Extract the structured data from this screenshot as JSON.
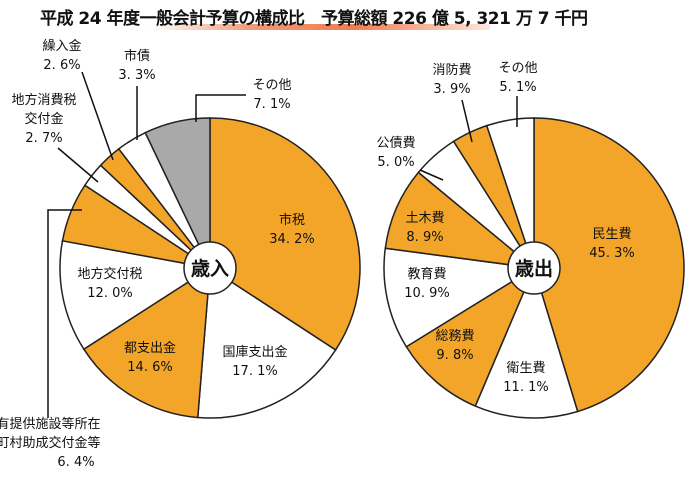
{
  "title": "平成 24 年度一般会計予算の構成比　予算総額 226 億 5, 321 万 7 千円",
  "colors": {
    "orange": "#f3a52a",
    "white": "#ffffff",
    "gray": "#a9a9a9",
    "stroke": "#222222"
  },
  "chart_data": [
    {
      "type": "pie",
      "center_label": "歳入",
      "slices": [
        {
          "label": "市税",
          "value": 34.2,
          "text": "34. 2%",
          "color": "orange"
        },
        {
          "label": "国庫支出金",
          "value": 17.1,
          "text": "17. 1%",
          "color": "white"
        },
        {
          "label": "都支出金",
          "value": 14.6,
          "text": "14. 6%",
          "color": "orange"
        },
        {
          "label": "地方交付税",
          "value": 12.0,
          "text": "12. 0%",
          "color": "white"
        },
        {
          "label": "国有提供施設等所在\n市町村助成交付金等",
          "value": 6.4,
          "text": "6. 4%",
          "color": "orange"
        },
        {
          "label": "地方消費税\n交付金",
          "value": 2.7,
          "text": "2. 7%",
          "color": "white"
        },
        {
          "label": "繰入金",
          "value": 2.6,
          "text": "2. 6%",
          "color": "orange"
        },
        {
          "label": "市債",
          "value": 3.3,
          "text": "3. 3%",
          "color": "white"
        },
        {
          "label": "その他",
          "value": 7.1,
          "text": "7. 1%",
          "color": "gray"
        }
      ]
    },
    {
      "type": "pie",
      "center_label": "歳出",
      "slices": [
        {
          "label": "民生費",
          "value": 45.3,
          "text": "45. 3%",
          "color": "orange"
        },
        {
          "label": "衛生費",
          "value": 11.1,
          "text": "11. 1%",
          "color": "white"
        },
        {
          "label": "総務費",
          "value": 9.8,
          "text": "9. 8%",
          "color": "orange"
        },
        {
          "label": "教育費",
          "value": 10.9,
          "text": "10. 9%",
          "color": "white"
        },
        {
          "label": "土木費",
          "value": 8.9,
          "text": "8. 9%",
          "color": "orange"
        },
        {
          "label": "公債費",
          "value": 5.0,
          "text": "5. 0%",
          "color": "white"
        },
        {
          "label": "消防費",
          "value": 3.9,
          "text": "3. 9%",
          "color": "orange"
        },
        {
          "label": "その他",
          "value": 5.1,
          "text": "5. 1%",
          "color": "white"
        }
      ]
    }
  ]
}
